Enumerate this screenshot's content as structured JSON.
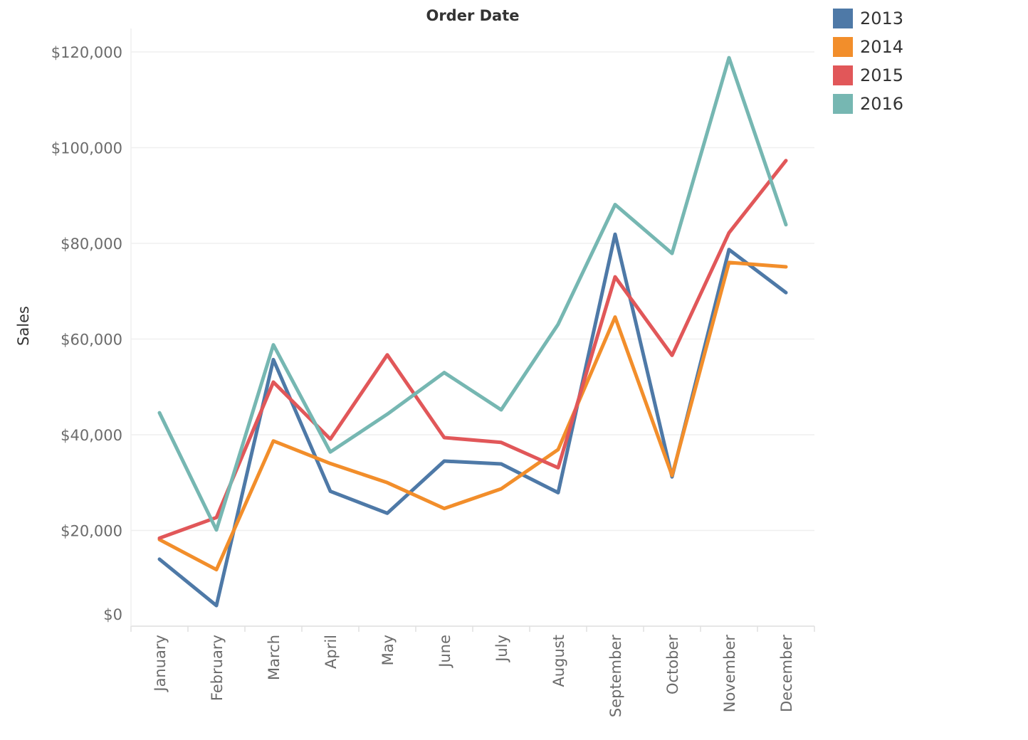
{
  "chart_data": {
    "type": "line",
    "title": "Order Date",
    "xlabel": "",
    "ylabel": "Sales",
    "ylim": [
      0,
      125000
    ],
    "yticks": [
      0,
      20000,
      40000,
      60000,
      80000,
      100000,
      120000
    ],
    "ytick_labels": [
      "$0",
      "$20,000",
      "$40,000",
      "$60,000",
      "$80,000",
      "$100,000",
      "$120,000"
    ],
    "grid": true,
    "legend_placement": "top-right",
    "categories": [
      "January",
      "February",
      "March",
      "April",
      "May",
      "June",
      "July",
      "August",
      "September",
      "October",
      "November",
      "December"
    ],
    "series": [
      {
        "name": "2013",
        "color": "#4e79a7",
        "values": [
          14000,
          4300,
          55700,
          28200,
          23600,
          34500,
          33900,
          27900,
          81900,
          31200,
          78700,
          69700
        ]
      },
      {
        "name": "2014",
        "color": "#f28e2b",
        "values": [
          18100,
          11800,
          38700,
          34000,
          30000,
          24600,
          28700,
          36900,
          64600,
          31500,
          76000,
          75100
        ]
      },
      {
        "name": "2015",
        "color": "#e15759",
        "values": [
          18400,
          22700,
          51000,
          39100,
          56700,
          39400,
          38400,
          33100,
          73000,
          56600,
          82200,
          97300
        ]
      },
      {
        "name": "2016",
        "color": "#76b7b2",
        "values": [
          44600,
          20100,
          58800,
          36400,
          44300,
          53000,
          45200,
          63100,
          88100,
          77900,
          118800,
          83900
        ]
      }
    ]
  }
}
